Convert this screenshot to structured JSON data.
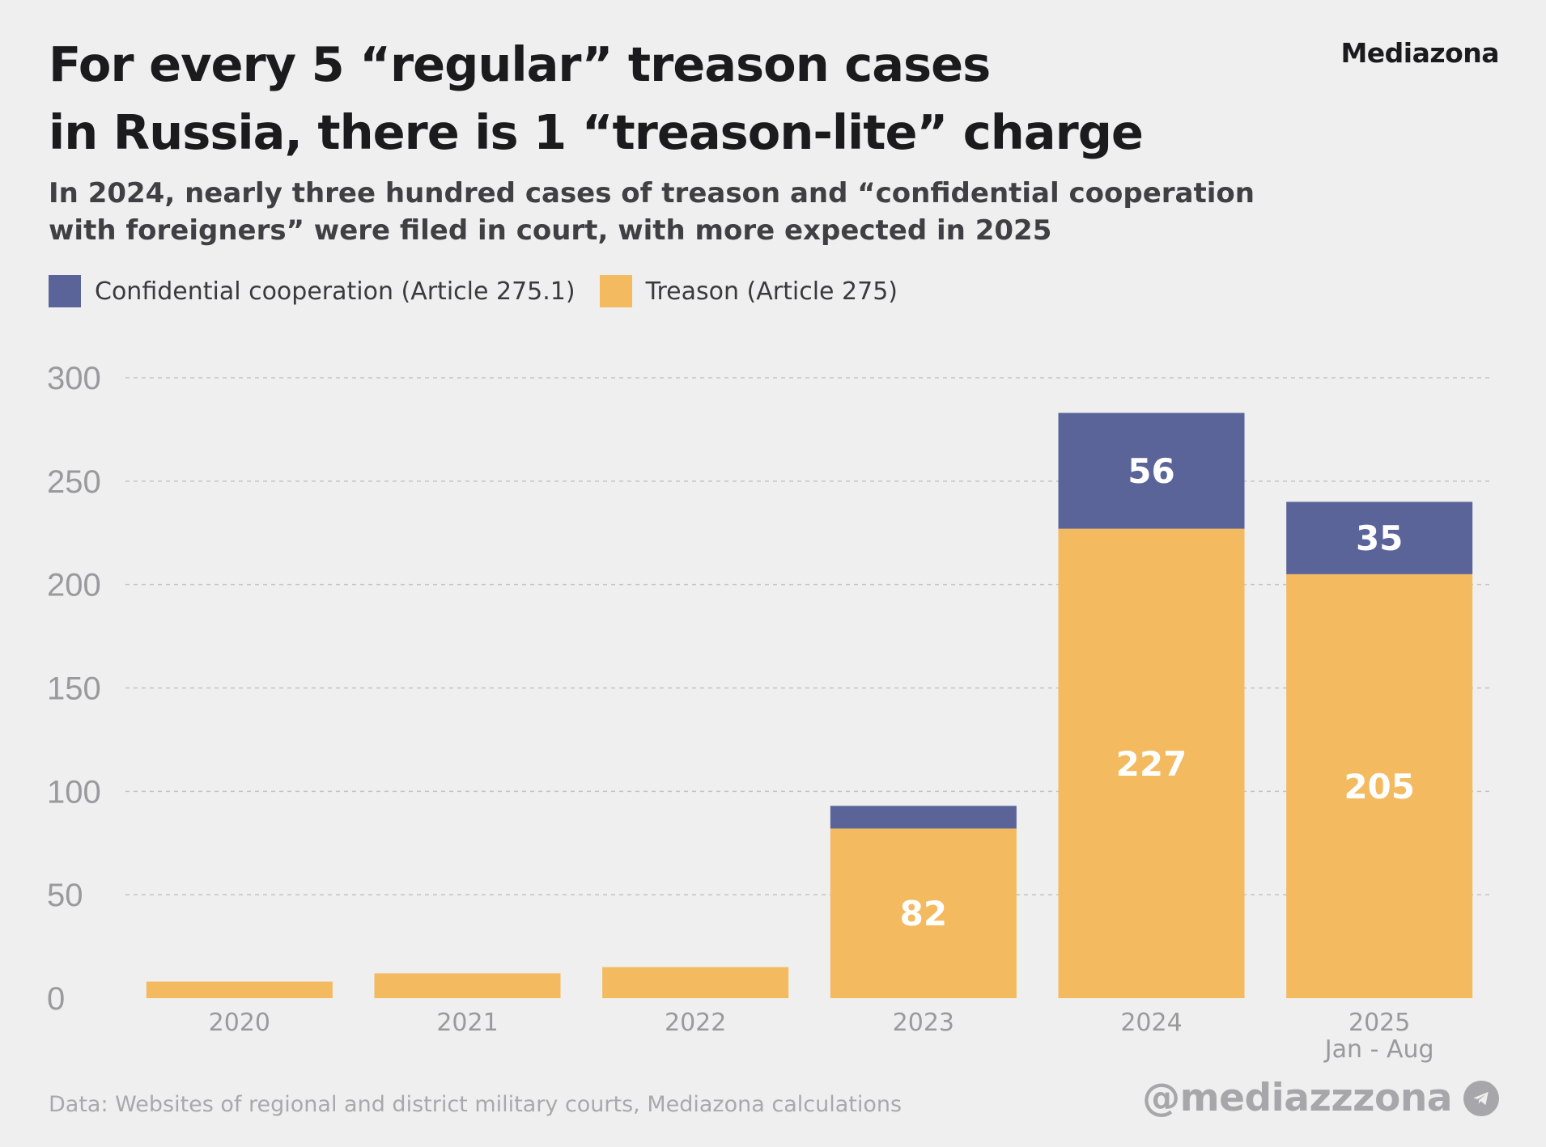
{
  "header": {
    "title_lines": [
      "For every 5 “regular” treason cases",
      "in Russia, there is 1 “treason-lite” charge"
    ],
    "brand": "Mediazona",
    "subtitle_lines": [
      "In 2024, nearly three hundred cases of treason and “confidential cooperation",
      "with foreigners” were filed in court, with more expected in 2025"
    ]
  },
  "footer": {
    "source": "Data: Websites of regional and district military courts, Mediazona calculations",
    "handle": "@mediazzzona",
    "handle_icon": "telegram-icon"
  },
  "colors": {
    "treason": "#f3ba5f",
    "confidential": "#5b6499",
    "grid": "#c4c4c4",
    "tick": "#9a9a9e"
  },
  "chart_data": {
    "type": "bar",
    "stacked": true,
    "categories": [
      "2020",
      "2021",
      "2022",
      "2023",
      "2024",
      "2025"
    ],
    "category_sublabels": [
      "",
      "",
      "",
      "",
      "",
      "Jan - Aug"
    ],
    "series": [
      {
        "name": "Treason (Article 275)",
        "color": "#f3ba5f",
        "values": [
          8,
          12,
          15,
          82,
          227,
          205
        ],
        "labels": [
          "",
          "",
          "",
          "82",
          "227",
          "205"
        ]
      },
      {
        "name": "Confidential cooperation (Article 275.1)",
        "color": "#5b6499",
        "values": [
          0,
          0,
          0,
          11,
          56,
          35
        ],
        "labels": [
          "",
          "",
          "",
          "",
          "56",
          "35"
        ]
      }
    ],
    "legend_order": [
      1,
      0
    ],
    "legend_position": "top-left",
    "ylim": [
      0,
      300
    ],
    "yticks": [
      0,
      50,
      100,
      150,
      200,
      250,
      300
    ],
    "grid": true
  }
}
